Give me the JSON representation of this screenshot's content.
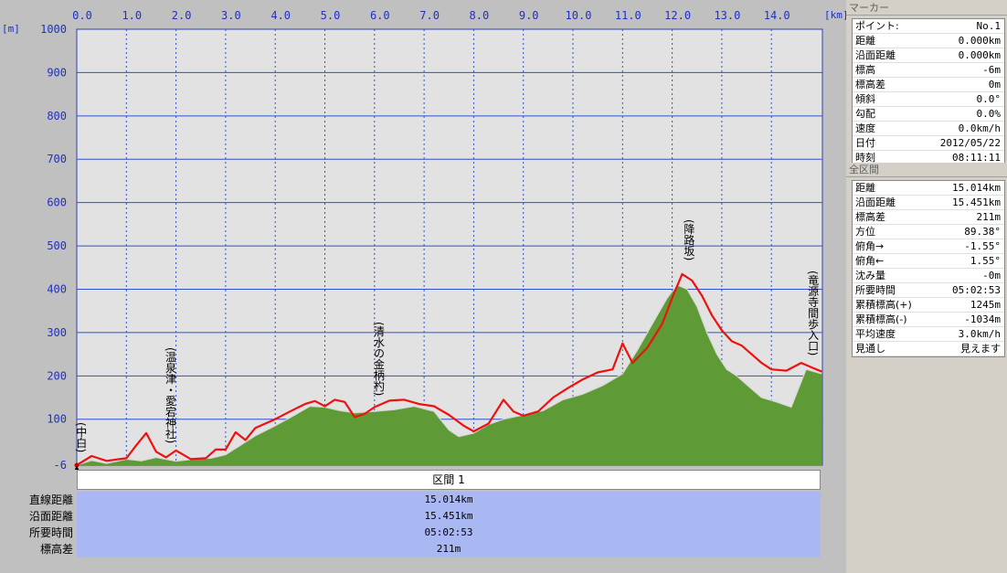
{
  "chart_data": {
    "type": "area",
    "x_unit": "[km]",
    "y_unit": "[m]",
    "x_ticks": [
      "0.0",
      "1.0",
      "2.0",
      "3.0",
      "4.0",
      "5.0",
      "6.0",
      "7.0",
      "8.0",
      "9.0",
      "10.0",
      "11.0",
      "12.0",
      "13.0",
      "14.0"
    ],
    "y_ticks": [
      "1000",
      "900",
      "800",
      "700",
      "600",
      "500",
      "400",
      "300",
      "200",
      "100",
      "-6"
    ],
    "xlim": [
      0,
      15.014
    ],
    "ylim": [
      -6,
      1000
    ],
    "grid": true,
    "series": [
      {
        "role": "elevation-area",
        "color": "#5e9a35",
        "x": [
          0,
          0.3,
          0.6,
          1.0,
          1.3,
          1.6,
          2.0,
          2.3,
          2.7,
          3.0,
          3.3,
          3.6,
          4.0,
          4.4,
          4.7,
          5.0,
          5.3,
          5.6,
          6.0,
          6.4,
          6.8,
          7.2,
          7.5,
          7.7,
          8.0,
          8.3,
          8.6,
          9.0,
          9.4,
          9.8,
          10.2,
          10.6,
          11.0,
          11.3,
          11.6,
          11.9,
          12.1,
          12.3,
          12.5,
          12.7,
          12.9,
          13.1,
          13.3,
          13.5,
          13.8,
          14.1,
          14.4,
          14.7,
          15.014
        ],
        "y": [
          -6,
          5,
          -2,
          8,
          4,
          12,
          3,
          7,
          10,
          18,
          40,
          62,
          85,
          110,
          130,
          128,
          120,
          115,
          118,
          122,
          130,
          118,
          75,
          60,
          68,
          88,
          100,
          110,
          120,
          145,
          158,
          178,
          205,
          260,
          320,
          380,
          410,
          400,
          360,
          300,
          250,
          215,
          200,
          180,
          150,
          140,
          128,
          215,
          205
        ]
      },
      {
        "role": "track-line",
        "color": "#ee1111",
        "x": [
          0,
          0.3,
          0.6,
          1.0,
          1.2,
          1.4,
          1.6,
          1.8,
          2.0,
          2.3,
          2.6,
          2.8,
          3.0,
          3.2,
          3.4,
          3.6,
          4.0,
          4.3,
          4.6,
          4.8,
          5.0,
          5.2,
          5.4,
          5.6,
          5.8,
          6.0,
          6.3,
          6.6,
          6.9,
          7.2,
          7.5,
          7.8,
          8.0,
          8.3,
          8.6,
          8.8,
          9.0,
          9.3,
          9.6,
          9.9,
          10.2,
          10.5,
          10.8,
          11.0,
          11.2,
          11.5,
          11.8,
          12.0,
          12.2,
          12.4,
          12.6,
          12.8,
          13.0,
          13.2,
          13.4,
          13.6,
          13.8,
          14.0,
          14.3,
          14.6,
          14.8,
          15.014
        ],
        "y": [
          -6,
          15,
          4,
          10,
          40,
          68,
          25,
          12,
          28,
          8,
          10,
          30,
          30,
          70,
          52,
          80,
          100,
          118,
          135,
          142,
          130,
          145,
          140,
          105,
          112,
          128,
          143,
          145,
          135,
          130,
          110,
          85,
          72,
          90,
          145,
          118,
          108,
          118,
          150,
          172,
          192,
          208,
          215,
          275,
          230,
          265,
          320,
          380,
          435,
          420,
          385,
          340,
          305,
          280,
          270,
          250,
          230,
          215,
          212,
          230,
          220,
          210
        ]
      }
    ],
    "annotations": [
      {
        "x": 0.05,
        "label": "(中白)"
      },
      {
        "x": 1.85,
        "label": "(温泉津・愛宕神社)"
      },
      {
        "x": 6.05,
        "label": "(清水の金柄杓)"
      },
      {
        "x": 12.3,
        "label": "(降路坂)"
      },
      {
        "x": 14.8,
        "label": "(竜源寺間歩入口)"
      }
    ]
  },
  "section": {
    "header": "区間 1",
    "rows": [
      {
        "label": "直線距離",
        "value": "15.014km"
      },
      {
        "label": "沿面距離",
        "value": "15.451km"
      },
      {
        "label": "所要時間",
        "value": "05:02:53"
      },
      {
        "label": "標高差",
        "value": "211m"
      }
    ]
  },
  "marker_panel": {
    "title": "マーカー",
    "rows": [
      {
        "label": "ポイント:",
        "value": "No.1"
      },
      {
        "label": "距離",
        "value": "0.000km"
      },
      {
        "label": "沿面距離",
        "value": "0.000km"
      },
      {
        "label": "標高",
        "value": "-6m"
      },
      {
        "label": "標高差",
        "value": "0m"
      },
      {
        "label": "傾斜",
        "value": "0.0°"
      },
      {
        "label": "勾配",
        "value": "0.0%"
      },
      {
        "label": "速度",
        "value": "0.0km/h"
      },
      {
        "label": "日付",
        "value": "2012/05/22"
      },
      {
        "label": "時刻",
        "value": "08:11:11"
      }
    ]
  },
  "total_panel": {
    "title": "全区間",
    "rows": [
      {
        "label": "距離",
        "value": "15.014km"
      },
      {
        "label": "沿面距離",
        "value": "15.451km"
      },
      {
        "label": "標高差",
        "value": "211m"
      },
      {
        "label": "方位",
        "value": "89.38°"
      },
      {
        "label": "俯角→",
        "value": "-1.55°"
      },
      {
        "label": "俯角←",
        "value": "1.55°"
      },
      {
        "label": "沈み量",
        "value": "-0m"
      },
      {
        "label": "所要時間",
        "value": "05:02:53"
      },
      {
        "label": "累積標高(+)",
        "value": "1245m"
      },
      {
        "label": "累積標高(-)",
        "value": "-1034m"
      },
      {
        "label": "平均速度",
        "value": "3.0km/h"
      },
      {
        "label": "見通し",
        "value": "見えます"
      }
    ]
  }
}
